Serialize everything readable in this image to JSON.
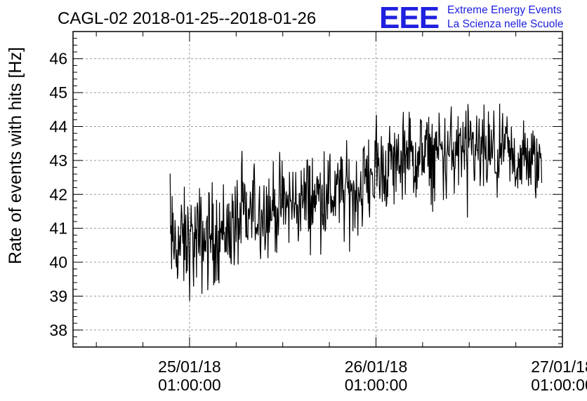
{
  "header": {
    "title": "CAGL-02 2018-01-25--2018-01-26",
    "logo_letters": "EEE",
    "logo_line1": "Extreme Energy Events",
    "logo_line2": "La Scienza nelle Scuole",
    "logo_color": "#2020e0"
  },
  "chart_data": {
    "type": "line",
    "title": "CAGL-02 2018-01-25--2018-01-26",
    "ylabel": "Rate of events with hits [Hz]",
    "xlabel": "",
    "xlim": [
      "2018-01-24T10:00:00",
      "2018-01-27T01:00:00"
    ],
    "ylim": [
      37.5,
      46.8
    ],
    "grid": true,
    "y_ticks": [
      38,
      39,
      40,
      41,
      42,
      43,
      44,
      45,
      46
    ],
    "x_ticks": [
      {
        "line1": "25/01/18",
        "line2": "01:00:00",
        "t": "2018-01-25T01:00:00"
      },
      {
        "line1": "26/01/18",
        "line2": "01:00:00",
        "t": "2018-01-26T01:00:00"
      },
      {
        "line1": "27/01/18",
        "line2": "01:00:00",
        "t": "2018-01-27T01:00:00"
      }
    ],
    "series": [
      {
        "color": "#000000",
        "x": [
          "2018-01-24T22:30",
          "2018-01-25T02:00",
          "2018-01-25T06:00",
          "2018-01-25T10:00",
          "2018-01-25T14:00",
          "2018-01-25T18:00",
          "2018-01-25T22:00",
          "2018-01-26T01:00",
          "2018-01-26T04:00",
          "2018-01-26T08:00",
          "2018-01-26T12:00",
          "2018-01-26T16:00",
          "2018-01-26T20:00",
          "2018-01-26T22:20"
        ],
        "values": [
          40.5,
          40.6,
          41.0,
          41.5,
          41.7,
          42.0,
          42.0,
          42.7,
          43.0,
          43.1,
          43.3,
          43.1,
          43.0,
          42.9
        ],
        "spread": [
          1.1,
          1.2,
          1.1,
          1.0,
          1.0,
          1.0,
          1.0,
          1.0,
          1.0,
          1.0,
          1.0,
          1.0,
          0.9,
          0.9
        ]
      }
    ]
  }
}
